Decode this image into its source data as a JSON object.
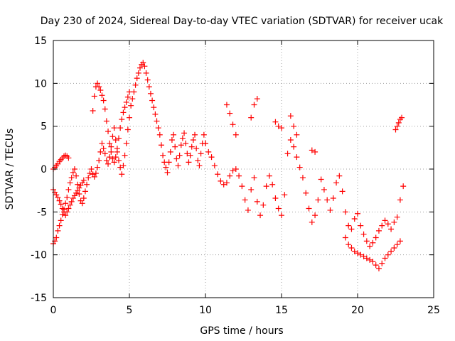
{
  "chart_data": {
    "type": "scatter",
    "title": "Day 230 of 2024, Sidereal Day-to-day VTEC variation (SDTVAR) for receiver ucak",
    "xlabel": "GPS time / hours",
    "ylabel": "SDTVAR / TECUs",
    "xlim": [
      0,
      25
    ],
    "ylim": [
      -15,
      15
    ],
    "xticks": [
      0,
      5,
      10,
      15,
      20,
      25
    ],
    "yticks": [
      -15,
      -10,
      -5,
      0,
      5,
      10,
      15
    ],
    "grid": true,
    "marker": "+",
    "color": "#ff0000",
    "series": [
      {
        "name": "SDTVAR",
        "x": [
          0.0,
          0.1,
          0.2,
          0.3,
          0.4,
          0.5,
          0.6,
          0.7,
          0.8,
          0.9,
          1.0,
          1.1,
          1.2,
          1.3,
          1.4,
          1.5,
          1.6,
          1.7,
          1.8,
          1.9,
          2.0,
          2.1,
          2.2,
          2.3,
          2.4,
          2.5,
          2.6,
          2.7,
          2.8,
          2.9,
          3.0,
          3.1,
          3.2,
          3.3,
          3.4,
          3.5,
          3.6,
          3.7,
          3.8,
          3.9,
          4.0,
          4.1,
          4.2,
          4.3,
          4.4,
          4.5,
          4.6,
          4.7,
          4.8,
          4.9,
          5.0,
          5.1,
          5.2,
          5.3,
          5.4,
          5.5,
          5.6,
          5.7,
          5.8,
          5.9,
          6.0,
          6.1,
          6.2,
          6.3,
          6.4,
          6.5,
          6.6,
          6.7,
          6.8,
          6.9,
          7.0,
          7.1,
          7.2,
          7.3,
          7.4,
          7.5,
          7.6,
          7.7,
          7.8,
          7.9,
          8.0,
          8.1,
          8.2,
          8.3,
          8.4,
          8.5,
          8.6,
          8.7,
          8.8,
          8.9,
          9.0,
          9.1,
          9.2,
          9.3,
          9.4,
          9.5,
          9.6,
          9.7,
          9.8,
          9.9,
          10.0,
          0.0,
          0.1,
          0.2,
          0.3,
          0.4,
          0.5,
          0.6,
          0.7,
          0.8,
          0.9,
          1.0,
          0.0,
          0.1,
          0.2,
          0.3,
          0.4,
          0.5,
          0.6,
          0.7,
          0.8,
          0.9,
          1.0,
          1.1,
          1.2,
          1.3,
          1.4,
          1.5,
          1.6,
          1.7,
          1.8,
          1.9,
          2.0,
          2.6,
          2.7,
          2.8,
          2.9,
          3.0,
          3.1,
          3.2,
          3.3,
          3.4,
          3.5,
          3.6,
          3.7,
          3.8,
          3.9,
          4.0,
          4.1,
          4.2,
          4.3,
          4.4,
          4.5,
          4.6,
          4.7,
          4.8,
          4.9,
          5.0,
          10.0,
          10.2,
          10.4,
          10.6,
          10.8,
          11.0,
          11.2,
          11.4,
          11.6,
          11.8,
          12.0,
          12.2,
          12.4,
          12.6,
          12.8,
          13.0,
          13.2,
          13.4,
          13.6,
          13.8,
          14.0,
          14.2,
          14.4,
          14.6,
          14.8,
          15.0,
          15.2,
          15.4,
          15.6,
          15.8,
          16.0,
          16.2,
          16.4,
          16.6,
          16.8,
          17.0,
          17.2,
          17.4,
          17.6,
          17.8,
          18.0,
          18.2,
          18.4,
          18.6,
          18.8,
          19.0,
          19.2,
          19.4,
          19.6,
          19.8,
          20.0,
          20.2,
          20.4,
          20.6,
          20.8,
          21.0,
          21.2,
          21.4,
          21.6,
          21.8,
          22.0,
          22.2,
          22.4,
          22.6,
          22.8,
          23.0,
          11.4,
          11.6,
          11.8,
          12.0,
          13.0,
          13.2,
          13.4,
          14.6,
          14.8,
          15.0,
          15.6,
          15.8,
          16.0,
          17.0,
          17.2,
          19.2,
          19.4,
          19.6,
          19.8,
          20.0,
          20.2,
          20.4,
          20.6,
          20.8,
          21.0,
          21.2,
          21.4,
          21.6,
          21.8,
          22.0,
          22.2,
          22.4,
          22.6,
          22.8,
          22.5,
          22.6,
          22.7,
          22.8,
          22.9
        ],
        "y": [
          -8.7,
          -8.4,
          -8.0,
          -7.2,
          -6.6,
          -6.0,
          -5.3,
          -4.7,
          -4.0,
          -3.3,
          -2.4,
          -1.6,
          -1.0,
          -0.4,
          0.0,
          -0.8,
          -1.8,
          -2.9,
          -3.7,
          -4.0,
          -3.4,
          -2.6,
          -1.8,
          -1.0,
          -0.5,
          0.0,
          -0.6,
          -0.9,
          -0.5,
          0.2,
          1.0,
          2.0,
          3.0,
          2.4,
          1.8,
          1.0,
          0.6,
          1.4,
          2.6,
          3.8,
          4.8,
          3.4,
          2.0,
          1.0,
          0.2,
          -0.6,
          0.4,
          1.6,
          3.0,
          4.6,
          6.0,
          7.4,
          8.2,
          9.0,
          9.8,
          10.6,
          11.2,
          11.8,
          12.2,
          12.4,
          12.0,
          11.2,
          10.4,
          9.6,
          8.8,
          8.0,
          7.2,
          6.4,
          5.6,
          4.8,
          4.0,
          2.8,
          1.6,
          0.8,
          0.2,
          -0.4,
          0.8,
          2.0,
          3.4,
          4.0,
          2.6,
          1.2,
          0.4,
          1.6,
          2.8,
          3.6,
          4.2,
          3.0,
          1.8,
          0.8,
          1.6,
          2.6,
          3.4,
          4.0,
          2.4,
          1.0,
          0.4,
          1.8,
          3.0,
          4.0,
          3.0,
          0.0,
          0.2,
          0.4,
          0.6,
          0.9,
          1.1,
          1.3,
          1.5,
          1.6,
          1.5,
          1.3,
          -2.4,
          -2.7,
          -3.0,
          -3.3,
          -3.7,
          -4.1,
          -4.6,
          -5.0,
          -5.4,
          -5.0,
          -4.6,
          -4.2,
          -3.8,
          -3.4,
          -3.1,
          -2.8,
          -2.5,
          -2.2,
          -1.9,
          -1.6,
          -1.3,
          6.8,
          8.5,
          9.6,
          10.0,
          9.6,
          9.2,
          8.6,
          8.0,
          7.0,
          5.6,
          4.4,
          3.0,
          2.0,
          1.2,
          0.8,
          1.4,
          2.4,
          3.6,
          4.8,
          5.8,
          6.6,
          7.2,
          7.8,
          8.4,
          9.0,
          3.0,
          2.0,
          1.4,
          0.4,
          -0.6,
          -1.4,
          -1.8,
          -1.6,
          -0.8,
          -0.2,
          0.0,
          -0.8,
          -2.0,
          -3.6,
          -4.8,
          -2.4,
          -1.0,
          -3.8,
          -5.4,
          -4.2,
          -2.0,
          -0.8,
          -1.8,
          -3.4,
          -4.6,
          -5.4,
          -3.0,
          1.8,
          3.4,
          2.6,
          1.4,
          0.2,
          -1.0,
          -2.8,
          -4.6,
          -6.2,
          -5.4,
          -3.6,
          -1.2,
          -2.4,
          -3.6,
          -4.8,
          -3.4,
          -1.6,
          -0.8,
          -2.6,
          -5.0,
          -6.6,
          -7.0,
          -5.8,
          -5.2,
          -6.6,
          -7.6,
          -8.4,
          -9.0,
          -8.6,
          -8.0,
          -7.2,
          -6.6,
          -6.0,
          -6.4,
          -7.0,
          -6.2,
          -5.6,
          -3.6,
          -2.0,
          7.5,
          6.5,
          5.2,
          4.0,
          6.0,
          7.5,
          8.2,
          5.5,
          5.0,
          4.8,
          6.2,
          5.0,
          4.0,
          2.2,
          2.0,
          -8.0,
          -8.8,
          -9.2,
          -9.6,
          -9.8,
          -10.0,
          -10.2,
          -10.4,
          -10.6,
          -10.8,
          -11.2,
          -11.6,
          -11.0,
          -10.4,
          -10.0,
          -9.6,
          -9.2,
          -8.8,
          -8.4,
          4.6,
          5.0,
          5.4,
          5.8,
          6.0
        ]
      }
    ]
  }
}
